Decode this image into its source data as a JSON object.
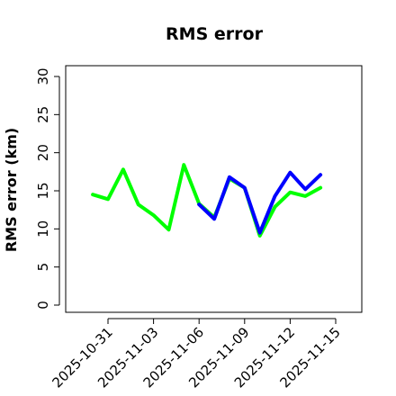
{
  "chart_data": {
    "type": "line",
    "title": "RMS error",
    "xlabel": "",
    "ylabel": "RMS error (km)",
    "ylim": [
      0,
      30
    ],
    "y_ticks": [
      0,
      5,
      10,
      15,
      20,
      25,
      30
    ],
    "x_ticks": [
      "2025-10-31",
      "2025-11-03",
      "2025-11-06",
      "2025-11-09",
      "2025-11-12",
      "2025-11-15"
    ],
    "highlighted_tick": "2025-11-06",
    "highlight_color": "#228b22",
    "grid": false,
    "legend": "none",
    "series": [
      {
        "color": "#00ff00",
        "x": [
          "2025-10-30",
          "2025-10-31",
          "2025-11-01",
          "2025-11-02",
          "2025-11-03",
          "2025-11-04",
          "2025-11-05",
          "2025-11-06",
          "2025-11-07",
          "2025-11-08",
          "2025-11-09",
          "2025-11-10",
          "2025-11-11",
          "2025-11-12",
          "2025-11-13",
          "2025-11-14"
        ],
        "values": [
          14.5,
          13.9,
          17.8,
          13.2,
          11.8,
          9.9,
          18.4,
          13.3,
          11.5,
          16.6,
          15.4,
          9.1,
          12.9,
          14.8,
          14.3,
          15.4
        ]
      },
      {
        "color": "#0000ff",
        "x": [
          "2025-11-06",
          "2025-11-07",
          "2025-11-08",
          "2025-11-09",
          "2025-11-10",
          "2025-11-11",
          "2025-11-12",
          "2025-11-13",
          "2025-11-14"
        ],
        "values": [
          13.2,
          11.3,
          16.8,
          15.4,
          9.5,
          14.3,
          17.4,
          15.2,
          17.1
        ]
      }
    ]
  }
}
